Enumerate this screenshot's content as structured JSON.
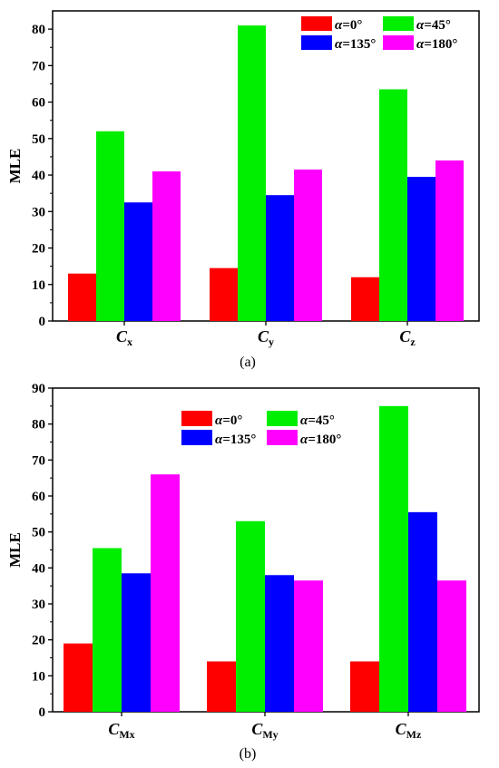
{
  "chart_data": [
    {
      "type": "bar",
      "panel_label": "(a)",
      "ylabel": "MLE",
      "ylim": [
        0,
        85
      ],
      "yticks": [
        0,
        10,
        20,
        30,
        40,
        50,
        60,
        70,
        80
      ],
      "categories": [
        {
          "main": "C",
          "sub": "x"
        },
        {
          "main": "C",
          "sub": "y"
        },
        {
          "main": "C",
          "sub": "z"
        }
      ],
      "series": [
        {
          "name": "α=0°",
          "color": "#ff0000",
          "values": [
            13,
            14.5,
            12
          ]
        },
        {
          "name": "α=45°",
          "color": "#00ee00",
          "values": [
            52,
            81,
            63.5
          ]
        },
        {
          "name": "α=135°",
          "color": "#0000ff",
          "values": [
            32.5,
            34.5,
            39.5
          ]
        },
        {
          "name": "α=180°",
          "color": "#ff00ff",
          "values": [
            41,
            41.5,
            44
          ]
        }
      ],
      "legend": "top-right",
      "grid": false
    },
    {
      "type": "bar",
      "panel_label": "(b)",
      "ylabel": "MLE",
      "ylim": [
        0,
        90
      ],
      "yticks": [
        0,
        10,
        20,
        30,
        40,
        50,
        60,
        70,
        80,
        90
      ],
      "categories": [
        {
          "main": "C",
          "sub": "Mx"
        },
        {
          "main": "C",
          "sub": "My"
        },
        {
          "main": "C",
          "sub": "Mz"
        }
      ],
      "series": [
        {
          "name": "α=0°",
          "color": "#ff0000",
          "values": [
            19,
            14,
            14
          ]
        },
        {
          "name": "α=45°",
          "color": "#00ee00",
          "values": [
            45.5,
            53,
            85
          ]
        },
        {
          "name": "α=135°",
          "color": "#0000ff",
          "values": [
            38.5,
            38,
            55.5
          ]
        },
        {
          "name": "α=180°",
          "color": "#ff00ff",
          "values": [
            66,
            36.5,
            36.5
          ]
        }
      ],
      "legend": "top-center",
      "grid": false
    }
  ]
}
